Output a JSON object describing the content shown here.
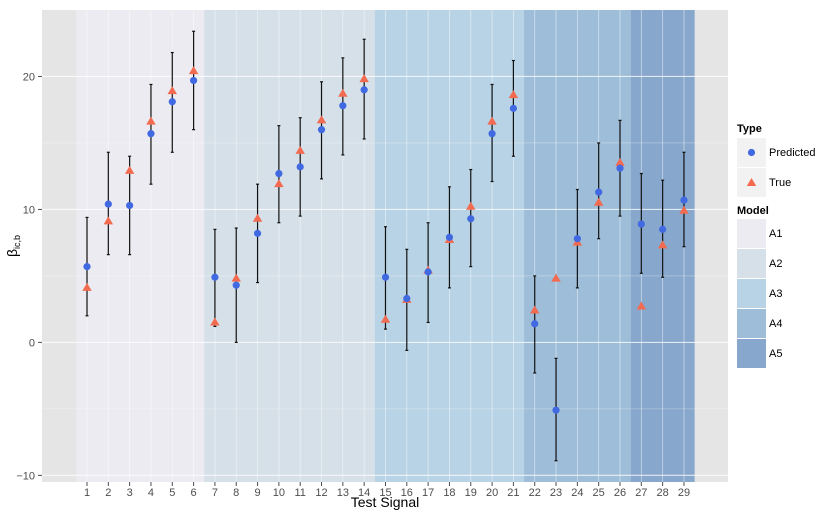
{
  "chart_data": {
    "type": "scatter",
    "xlabel": "Test Signal",
    "ylabel_main": "β",
    "ylabel_sub": "ic,b",
    "x_categories": [
      "1",
      "2",
      "3",
      "4",
      "5",
      "6",
      "7",
      "8",
      "9",
      "10",
      "11",
      "12",
      "13",
      "14",
      "15",
      "16",
      "17",
      "18",
      "19",
      "20",
      "21",
      "22",
      "23",
      "24",
      "25",
      "26",
      "27",
      "28",
      "29"
    ],
    "ylim": [
      -10.5,
      25
    ],
    "yticks": [
      -10,
      0,
      10,
      20
    ],
    "ytick_labels": [
      "−10",
      "0",
      "10",
      "20"
    ],
    "grid": true,
    "model_bands": [
      {
        "name": "A1",
        "from": 1,
        "to": 6,
        "color": "#ecebf1"
      },
      {
        "name": "A2",
        "from": 7,
        "to": 14,
        "color": "#d5e0e9"
      },
      {
        "name": "A3",
        "from": 15,
        "to": 21,
        "color": "#b8d3e5"
      },
      {
        "name": "A4",
        "from": 22,
        "to": 26,
        "color": "#9dbdd9"
      },
      {
        "name": "A5",
        "from": 27,
        "to": 29,
        "color": "#87a7cc"
      }
    ],
    "series": [
      {
        "name": "Predicted",
        "marker": "circle",
        "color": "#4169e1",
        "values": [
          5.7,
          10.4,
          10.3,
          15.7,
          18.1,
          19.7,
          4.9,
          4.3,
          8.2,
          12.7,
          13.2,
          16.0,
          17.8,
          19.0,
          4.9,
          3.3,
          5.3,
          7.9,
          9.3,
          15.7,
          17.6,
          1.4,
          -5.1,
          7.8,
          11.3,
          13.1,
          8.9,
          8.5,
          10.7
        ],
        "error_low": [
          2.0,
          6.6,
          6.6,
          11.9,
          14.3,
          16.0,
          1.2,
          0.0,
          4.5,
          9.0,
          9.5,
          12.3,
          14.1,
          15.3,
          1.0,
          -0.6,
          1.5,
          4.1,
          5.7,
          12.1,
          14.0,
          -2.3,
          -8.9,
          4.1,
          7.8,
          9.5,
          5.2,
          4.9,
          7.2
        ],
        "error_high": [
          9.4,
          14.3,
          14.0,
          19.4,
          21.8,
          23.4,
          8.5,
          8.6,
          11.9,
          16.3,
          16.9,
          19.6,
          21.4,
          22.8,
          8.7,
          7.0,
          9.0,
          11.7,
          13.0,
          19.4,
          21.2,
          5.0,
          -1.2,
          11.5,
          15.0,
          16.7,
          12.7,
          12.2,
          14.3
        ]
      },
      {
        "name": "True",
        "marker": "triangle",
        "color": "#f26b50",
        "values": [
          4.1,
          9.1,
          12.9,
          16.6,
          18.9,
          20.4,
          1.5,
          4.8,
          9.3,
          11.9,
          14.4,
          16.7,
          18.7,
          19.8,
          1.7,
          3.2,
          5.4,
          7.7,
          10.2,
          16.6,
          18.6,
          2.4,
          4.8,
          7.5,
          10.5,
          13.5,
          2.7,
          7.3,
          9.9
        ]
      }
    ]
  },
  "legend": {
    "type_title": "Type",
    "type_items": [
      {
        "label": "Predicted",
        "marker": "circle",
        "color": "#4169e1"
      },
      {
        "label": "True",
        "marker": "triangle",
        "color": "#f26b50"
      }
    ],
    "model_title": "Model",
    "model_items": [
      {
        "label": "A1",
        "color": "#ecebf1"
      },
      {
        "label": "A2",
        "color": "#d5e0e9"
      },
      {
        "label": "A3",
        "color": "#b8d3e5"
      },
      {
        "label": "A4",
        "color": "#9dbdd9"
      },
      {
        "label": "A5",
        "color": "#87a7cc"
      }
    ]
  }
}
